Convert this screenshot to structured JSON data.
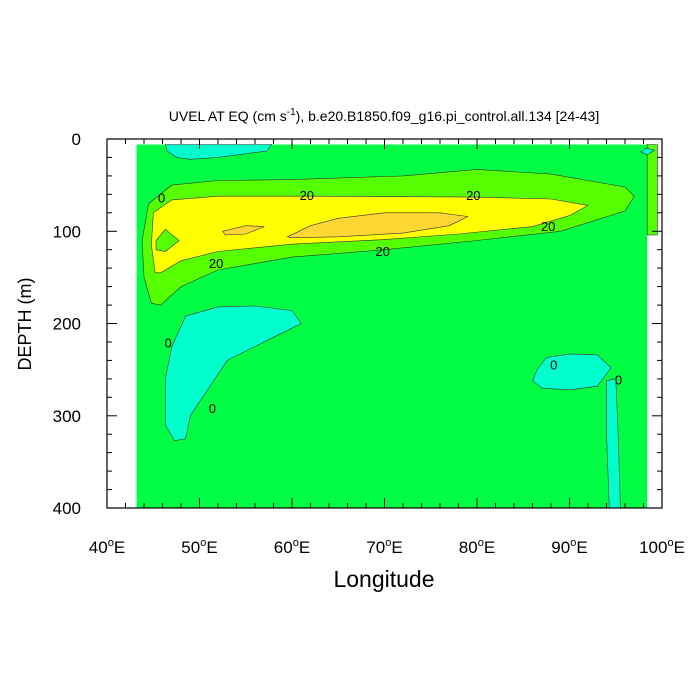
{
  "chart_data": {
    "type": "contour",
    "title": {
      "prefix": "UVEL AT EQ (cm s",
      "superscript": "-1",
      "suffix": "), b.e20.B1850.f09_g16.pi_control.all.134 [24-43]"
    },
    "xlabel": "Longitude",
    "ylabel": "DEPTH (m)",
    "xlim": [
      40,
      100
    ],
    "ylim": [
      0,
      400
    ],
    "y_inverted": true,
    "x_ticks": [
      {
        "value": 40,
        "label": "40",
        "suffix": "E"
      },
      {
        "value": 50,
        "label": "50",
        "suffix": "E"
      },
      {
        "value": 60,
        "label": "60",
        "suffix": "E"
      },
      {
        "value": 70,
        "label": "70",
        "suffix": "E"
      },
      {
        "value": 80,
        "label": "80",
        "suffix": "E"
      },
      {
        "value": 90,
        "label": "90",
        "suffix": "E"
      },
      {
        "value": 100,
        "label": "100",
        "suffix": "E"
      }
    ],
    "y_ticks": [
      {
        "value": 0,
        "label": "0"
      },
      {
        "value": 100,
        "label": "100"
      },
      {
        "value": 200,
        "label": "200"
      },
      {
        "value": 300,
        "label": "300"
      },
      {
        "value": 400,
        "label": "400"
      }
    ],
    "data_extent": {
      "lon": [
        43.2,
        98.4
      ],
      "depth": [
        6,
        400
      ]
    },
    "levels": [
      {
        "name": "below 0",
        "color": "#00ffcc"
      },
      {
        "name": "0 to 10",
        "color": "#00ff44"
      },
      {
        "name": "10 to 20",
        "color": "#55ff00"
      },
      {
        "name": "20 to 30",
        "color": "#ffff00"
      },
      {
        "name": "above 30",
        "color": "#ffd633"
      }
    ],
    "regions": [
      {
        "level": 1,
        "points": [
          [
            43.2,
            6
          ],
          [
            98.4,
            6
          ],
          [
            98.4,
            400
          ],
          [
            43.2,
            400
          ]
        ]
      },
      {
        "level": 2,
        "points": [
          [
            98.4,
            6
          ],
          [
            99.5,
            6
          ],
          [
            99.5,
            104
          ],
          [
            98.4,
            104
          ]
        ]
      },
      {
        "level": 0,
        "points": [
          [
            46.3,
            6
          ],
          [
            57.8,
            6
          ],
          [
            57.3,
            13
          ],
          [
            55,
            16
          ],
          [
            52,
            20
          ],
          [
            49,
            22
          ],
          [
            47.5,
            20
          ],
          [
            46.5,
            13
          ]
        ]
      },
      {
        "level": 0,
        "points": [
          [
            98.3,
            10
          ],
          [
            99.2,
            12
          ],
          [
            98.4,
            17
          ],
          [
            97.7,
            14
          ]
        ]
      },
      {
        "level": 0,
        "points": [
          [
            48.5,
            192
          ],
          [
            52,
            182
          ],
          [
            56,
            181
          ],
          [
            60,
            186
          ],
          [
            61,
            200
          ],
          [
            58,
            215
          ],
          [
            53,
            240
          ],
          [
            51,
            270
          ],
          [
            49,
            300
          ],
          [
            48.5,
            325
          ],
          [
            47.3,
            327
          ],
          [
            46.3,
            310
          ],
          [
            46.3,
            260
          ],
          [
            47,
            225
          ]
        ]
      },
      {
        "level": 0,
        "points": [
          [
            87.5,
            237
          ],
          [
            90,
            233
          ],
          [
            93,
            234
          ],
          [
            94.5,
            248
          ],
          [
            93,
            268
          ],
          [
            90,
            272
          ],
          [
            87,
            270
          ],
          [
            86,
            262
          ],
          [
            86.5,
            250
          ]
        ]
      },
      {
        "level": 0,
        "points": [
          [
            95,
            260
          ],
          [
            95.3,
            330
          ],
          [
            95.5,
            400
          ],
          [
            94.3,
            400
          ],
          [
            94,
            320
          ],
          [
            94,
            262
          ]
        ]
      },
      {
        "level": 2,
        "points": [
          [
            44.8,
            178
          ],
          [
            44,
            150
          ],
          [
            43.8,
            110
          ],
          [
            44.5,
            70
          ],
          [
            47,
            50
          ],
          [
            52,
            45
          ],
          [
            60,
            44
          ],
          [
            72,
            40
          ],
          [
            80,
            33
          ],
          [
            88,
            38
          ],
          [
            96,
            52
          ],
          [
            97,
            62
          ],
          [
            96,
            78
          ],
          [
            89,
            100
          ],
          [
            80,
            110
          ],
          [
            70,
            120
          ],
          [
            60,
            128
          ],
          [
            52,
            142
          ],
          [
            48,
            160
          ],
          [
            45.8,
            180
          ]
        ]
      },
      {
        "level": 3,
        "points": [
          [
            45.2,
            145
          ],
          [
            44.8,
            115
          ],
          [
            45,
            80
          ],
          [
            47,
            66
          ],
          [
            52,
            62
          ],
          [
            62,
            62
          ],
          [
            80,
            63
          ],
          [
            88,
            65
          ],
          [
            92,
            72
          ],
          [
            90,
            83
          ],
          [
            86,
            95
          ],
          [
            78,
            103
          ],
          [
            70,
            109
          ],
          [
            60,
            114
          ],
          [
            52,
            122
          ],
          [
            48,
            132
          ],
          [
            45.8,
            145
          ]
        ]
      },
      {
        "level": 4,
        "points": [
          [
            59.5,
            106
          ],
          [
            62,
            94
          ],
          [
            65,
            86
          ],
          [
            70,
            80
          ],
          [
            76,
            80
          ],
          [
            79,
            84
          ],
          [
            77,
            94
          ],
          [
            72,
            102
          ],
          [
            65,
            106
          ],
          [
            60,
            107
          ]
        ]
      },
      {
        "level": 4,
        "points": [
          [
            52.5,
            100
          ],
          [
            55,
            94
          ],
          [
            57,
            95
          ],
          [
            55,
            103
          ],
          [
            52.8,
            104
          ]
        ]
      },
      {
        "level": 2,
        "points": [
          [
            45.3,
            110
          ],
          [
            46.3,
            98
          ],
          [
            47.8,
            110
          ],
          [
            46.3,
            122
          ],
          [
            45.3,
            120
          ]
        ]
      }
    ],
    "contour_labels": [
      {
        "text": "20",
        "lon": 61.6,
        "depth": 61
      },
      {
        "text": "20",
        "lon": 79.6,
        "depth": 61
      },
      {
        "text": "20",
        "lon": 87.7,
        "depth": 95
      },
      {
        "text": "20",
        "lon": 69.8,
        "depth": 122
      },
      {
        "text": "20",
        "lon": 51.8,
        "depth": 135
      },
      {
        "text": "0",
        "lon": 45.9,
        "depth": 64
      },
      {
        "text": "0",
        "lon": 46.6,
        "depth": 221
      },
      {
        "text": "0",
        "lon": 51.4,
        "depth": 292
      },
      {
        "text": "0",
        "lon": 88.3,
        "depth": 245
      },
      {
        "text": "0",
        "lon": 95.3,
        "depth": 261
      }
    ]
  }
}
